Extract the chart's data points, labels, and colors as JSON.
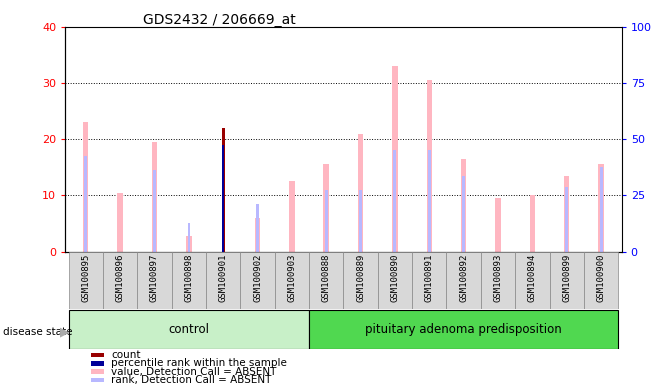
{
  "title": "GDS2432 / 206669_at",
  "samples": [
    "GSM100895",
    "GSM100896",
    "GSM100897",
    "GSM100898",
    "GSM100901",
    "GSM100902",
    "GSM100903",
    "GSM100888",
    "GSM100889",
    "GSM100890",
    "GSM100891",
    "GSM100892",
    "GSM100893",
    "GSM100894",
    "GSM100899",
    "GSM100900"
  ],
  "n_control": 7,
  "value_absent": [
    23,
    10.5,
    19.5,
    2.8,
    null,
    6.0,
    12.5,
    15.5,
    21,
    33,
    30.5,
    16.5,
    9.5,
    10,
    13.5,
    15.5
  ],
  "rank_absent": [
    17,
    null,
    14.5,
    null,
    null,
    null,
    null,
    11,
    11,
    18,
    18,
    13.5,
    null,
    null,
    11.5,
    15
  ],
  "count_red": [
    null,
    null,
    null,
    null,
    22,
    null,
    null,
    null,
    null,
    null,
    null,
    null,
    null,
    null,
    null,
    null
  ],
  "percentile_blue": [
    null,
    null,
    null,
    null,
    19,
    null,
    null,
    null,
    null,
    null,
    null,
    null,
    null,
    null,
    null,
    null
  ],
  "rank_absent_small": [
    null,
    null,
    null,
    5.0,
    null,
    8.5,
    null,
    null,
    null,
    null,
    null,
    null,
    null,
    null,
    null,
    null
  ],
  "ylim_left": [
    0,
    40
  ],
  "ylim_right": [
    0,
    100
  ],
  "yticks_left": [
    0,
    10,
    20,
    30,
    40
  ],
  "yticks_right": [
    0,
    25,
    50,
    75,
    100
  ],
  "yticklabels_right": [
    "0",
    "25",
    "50",
    "75",
    "100%"
  ],
  "color_value_absent": "#ffb6c1",
  "color_rank_absent": "#b8b8ff",
  "color_count": "#990000",
  "color_percentile": "#000099",
  "color_control_bg": "#c8f0c8",
  "color_disease_bg": "#50d850",
  "legend_items": [
    {
      "label": "count",
      "color": "#990000"
    },
    {
      "label": "percentile rank within the sample",
      "color": "#000099"
    },
    {
      "label": "value, Detection Call = ABSENT",
      "color": "#ffb6c1"
    },
    {
      "label": "rank, Detection Call = ABSENT",
      "color": "#b8b8ff"
    }
  ]
}
